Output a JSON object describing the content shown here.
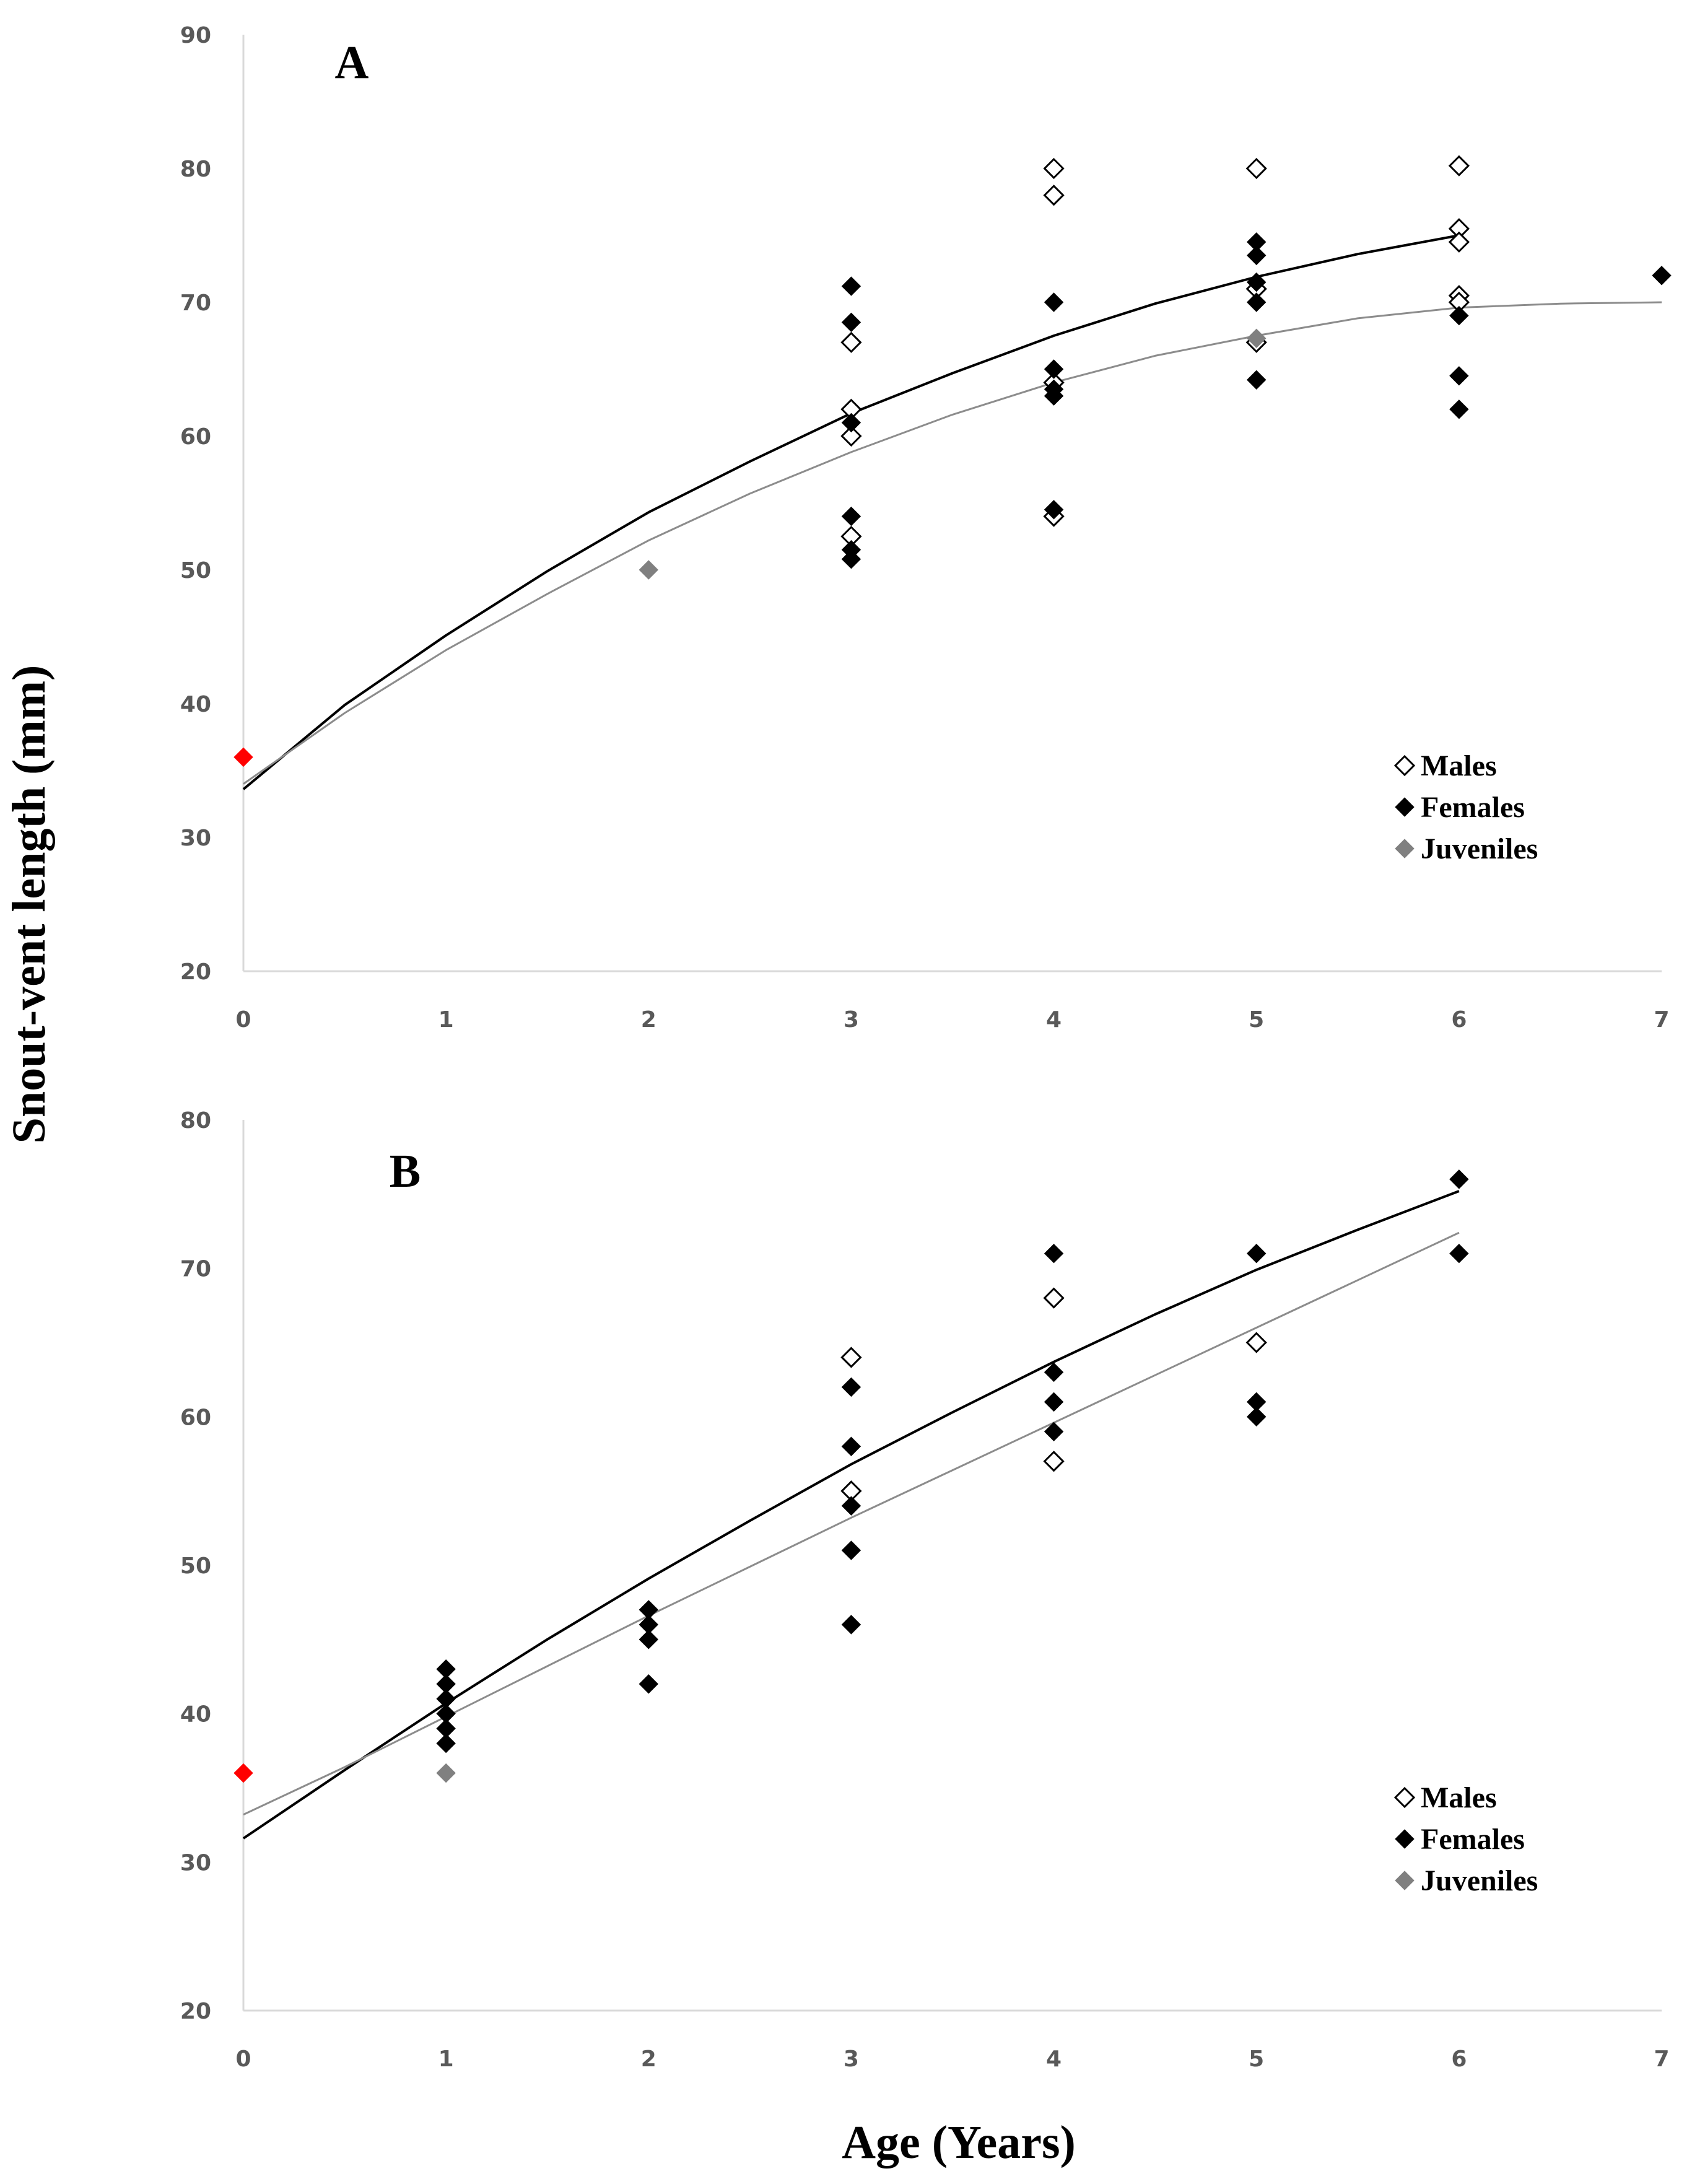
{
  "chart_data": {
    "type": "scatter",
    "ylabel": "Snout-vent length (mm)",
    "xlabel": "Age (Years)",
    "colors": {
      "males_fill": "#ffffff",
      "males_stroke": "#000000",
      "females": "#000000",
      "juveniles": "#808080",
      "hatchling": "#ff0000",
      "fit_black": "#000000",
      "fit_gray": "#8c8c8c",
      "axis": "#d9d9d9"
    },
    "legend": [
      "Males",
      "Females",
      "Juveniles"
    ],
    "panels": [
      {
        "label": "A",
        "xlim": [
          0,
          7
        ],
        "ylim": [
          20,
          90
        ],
        "xticks": [
          "0",
          "1",
          "2",
          "3",
          "4",
          "5",
          "6",
          "7"
        ],
        "yticks": [
          "20",
          "30",
          "40",
          "50",
          "60",
          "70",
          "80",
          "90"
        ],
        "series": [
          {
            "name": "Males",
            "points": [
              [
                3,
                67
              ],
              [
                3,
                62
              ],
              [
                3,
                60
              ],
              [
                3,
                52.5
              ],
              [
                4,
                80
              ],
              [
                4,
                78
              ],
              [
                4,
                64
              ],
              [
                4,
                54
              ],
              [
                5,
                80
              ],
              [
                5,
                71
              ],
              [
                5,
                67
              ],
              [
                6,
                80.2
              ],
              [
                6,
                75.5
              ],
              [
                6,
                74.5
              ],
              [
                6,
                70.5
              ],
              [
                6,
                70
              ]
            ]
          },
          {
            "name": "Females",
            "points": [
              [
                3,
                71.2
              ],
              [
                3,
                68.5
              ],
              [
                3,
                61
              ],
              [
                3,
                54
              ],
              [
                3,
                51.5
              ],
              [
                3,
                50.8
              ],
              [
                4,
                70
              ],
              [
                4,
                65
              ],
              [
                4,
                63.5
              ],
              [
                4,
                63
              ],
              [
                4,
                54.5
              ],
              [
                5,
                74.5
              ],
              [
                5,
                73.5
              ],
              [
                5,
                71.5
              ],
              [
                5,
                70
              ],
              [
                5,
                64.2
              ],
              [
                6,
                69
              ],
              [
                6,
                64.5
              ],
              [
                6,
                62
              ],
              [
                7,
                72
              ]
            ]
          },
          {
            "name": "Juveniles",
            "points": [
              [
                2,
                50
              ],
              [
                5,
                67.3
              ]
            ]
          },
          {
            "name": "Hatchling",
            "points": [
              [
                0,
                36
              ]
            ]
          }
        ],
        "curves": [
          {
            "name": "fit-black",
            "points": [
              [
                0,
                33.6
              ],
              [
                0.5,
                39.9
              ],
              [
                1,
                45.1
              ],
              [
                1.5,
                49.9
              ],
              [
                2,
                54.3
              ],
              [
                2.5,
                58.1
              ],
              [
                3,
                61.7
              ],
              [
                3.5,
                64.7
              ],
              [
                4,
                67.5
              ],
              [
                4.5,
                69.9
              ],
              [
                5,
                71.9
              ],
              [
                5.5,
                73.6
              ],
              [
                6,
                75
              ]
            ]
          },
          {
            "name": "fit-gray",
            "points": [
              [
                0,
                34
              ],
              [
                0.5,
                39.3
              ],
              [
                1,
                44
              ],
              [
                1.5,
                48.2
              ],
              [
                2,
                52.2
              ],
              [
                2.5,
                55.7
              ],
              [
                3,
                58.8
              ],
              [
                3.5,
                61.6
              ],
              [
                4,
                64
              ],
              [
                4.5,
                66
              ],
              [
                5,
                67.5
              ],
              [
                5.5,
                68.8
              ],
              [
                6,
                69.6
              ],
              [
                6.5,
                69.9
              ],
              [
                7,
                70
              ]
            ]
          }
        ]
      },
      {
        "label": "B",
        "xlim": [
          0,
          7
        ],
        "ylim": [
          20,
          80
        ],
        "xticks": [
          "0",
          "1",
          "2",
          "3",
          "4",
          "5",
          "6",
          "7"
        ],
        "yticks": [
          "20",
          "30",
          "40",
          "50",
          "60",
          "70",
          "80"
        ],
        "series": [
          {
            "name": "Males",
            "points": [
              [
                3,
                64
              ],
              [
                3,
                55
              ],
              [
                4,
                68
              ],
              [
                4,
                57
              ],
              [
                5,
                65
              ]
            ]
          },
          {
            "name": "Females",
            "points": [
              [
                1,
                43
              ],
              [
                1,
                42
              ],
              [
                1,
                41
              ],
              [
                1,
                40
              ],
              [
                1,
                39
              ],
              [
                1,
                38
              ],
              [
                2,
                47
              ],
              [
                2,
                46
              ],
              [
                2,
                45
              ],
              [
                2,
                42
              ],
              [
                3,
                62
              ],
              [
                3,
                58
              ],
              [
                3,
                54
              ],
              [
                3,
                51
              ],
              [
                3,
                46
              ],
              [
                4,
                71
              ],
              [
                4,
                63
              ],
              [
                4,
                61
              ],
              [
                4,
                59
              ],
              [
                5,
                71
              ],
              [
                5,
                61
              ],
              [
                5,
                60
              ],
              [
                6,
                76
              ],
              [
                6,
                71
              ]
            ]
          },
          {
            "name": "Juveniles",
            "points": [
              [
                1,
                36
              ]
            ]
          },
          {
            "name": "Hatchling",
            "points": [
              [
                0,
                36
              ]
            ]
          }
        ],
        "curves": [
          {
            "name": "fit-black",
            "points": [
              [
                0,
                31.6
              ],
              [
                0.5,
                36.2
              ],
              [
                1,
                40.7
              ],
              [
                1.5,
                45
              ],
              [
                2,
                49.1
              ],
              [
                2.5,
                53
              ],
              [
                3,
                56.8
              ],
              [
                3.5,
                60.3
              ],
              [
                4,
                63.7
              ],
              [
                4.5,
                66.9
              ],
              [
                5,
                69.9
              ],
              [
                5.5,
                72.6
              ],
              [
                6,
                75.2
              ]
            ]
          },
          {
            "name": "fit-gray",
            "points": [
              [
                0,
                33.2
              ],
              [
                0.5,
                36.4
              ],
              [
                1,
                39.8
              ],
              [
                1.5,
                43.2
              ],
              [
                2,
                46.6
              ],
              [
                2.5,
                49.9
              ],
              [
                3,
                53.2
              ],
              [
                3.5,
                56.4
              ],
              [
                4,
                59.6
              ],
              [
                4.5,
                62.8
              ],
              [
                5,
                66
              ],
              [
                5.5,
                69.2
              ],
              [
                6,
                72.4
              ]
            ]
          }
        ]
      }
    ]
  }
}
